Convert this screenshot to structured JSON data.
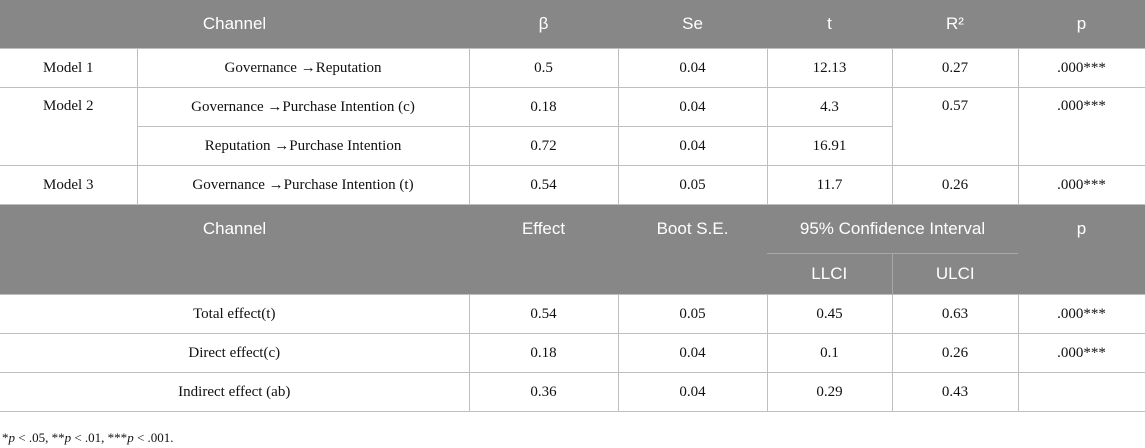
{
  "part1": {
    "headers": [
      "Channel",
      "β",
      "Se",
      "t",
      "R²",
      "p"
    ],
    "rows": [
      {
        "model": "Model 1",
        "channel": "Governance →Reputation",
        "beta": "0.5",
        "se": "0.04",
        "t": "12.13",
        "r2": "0.27",
        "p": ".000***"
      },
      {
        "model": "Model 2",
        "channel": "Governance →Purchase Intention (c)",
        "beta": "0.18",
        "se": "0.04",
        "t": "4.3",
        "r2": "0.57",
        "p": ".000***"
      },
      {
        "model": "",
        "channel": "Reputation →Purchase Intention",
        "beta": "0.72",
        "se": "0.04",
        "t": "16.91"
      },
      {
        "model": "Model 3",
        "channel": "Governance →Purchase Intention (t)",
        "beta": "0.54",
        "se": "0.05",
        "t": "11.7",
        "r2": "0.26",
        "p": ".000***"
      }
    ]
  },
  "part2": {
    "headers": {
      "channel": "Channel",
      "effect": "Effect",
      "boot_se": "Boot S.E.",
      "ci": "95% Confidence Interval",
      "llci": "LLCI",
      "ulci": "ULCI",
      "p": "p"
    },
    "rows": [
      {
        "channel": "Total effect(t)",
        "effect": "0.54",
        "boot_se": "0.05",
        "llci": "0.45",
        "ulci": "0.63",
        "p": ".000***"
      },
      {
        "channel": "Direct effect(c)",
        "effect": "0.18",
        "boot_se": "0.04",
        "llci": "0.1",
        "ulci": "0.26",
        "p": ".000***"
      },
      {
        "channel": "Indirect effect (ab)",
        "effect": "0.36",
        "boot_se": "0.04",
        "llci": "0.29",
        "ulci": "0.43",
        "p": ""
      }
    ]
  },
  "footnote": {
    "s1": "*",
    "p1": "p",
    "t1": " < .05, **",
    "p2": "p",
    "t2": " < .01, ***",
    "p3": "p",
    "t3": " < .001."
  }
}
